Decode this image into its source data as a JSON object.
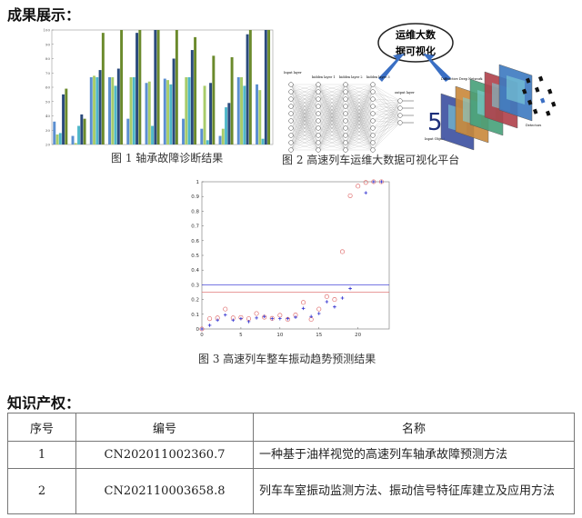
{
  "section1_title": "成果展示：",
  "fig1": {
    "caption": "图 1 轴承故障诊断结果",
    "chart_data": {
      "type": "bar",
      "ylim": [
        20,
        100
      ],
      "yticks": [
        20,
        30,
        40,
        50,
        60,
        70,
        80,
        90,
        100
      ],
      "colors": [
        "#5b8fd0",
        "#a8cc6a",
        "#4fb7c9",
        "#2a4a7c",
        "#6b8a2c"
      ],
      "groups": [
        [
          36,
          27,
          28,
          55,
          59
        ],
        [
          26,
          21,
          33,
          41,
          38
        ],
        [
          67,
          68,
          67,
          72,
          98
        ],
        [
          67,
          67,
          61,
          73,
          100
        ],
        [
          38,
          67,
          67,
          98,
          100
        ],
        [
          63,
          64,
          33,
          100,
          100
        ],
        [
          66,
          65,
          62,
          80,
          100
        ],
        [
          38,
          67,
          67,
          86,
          95
        ],
        [
          31,
          61,
          23,
          63,
          82
        ],
        [
          26,
          31,
          46,
          49,
          81
        ],
        [
          67,
          67,
          61,
          97,
          100
        ],
        [
          62,
          58,
          24,
          100,
          100
        ]
      ]
    }
  },
  "fig2": {
    "caption": "图 2 高速列车运维大数据可视化平台",
    "bubble_line1": "运维大数",
    "bubble_line2": "据可视化",
    "labels": {
      "input_layer": "Input layer",
      "hidden1": "hidden layer 1",
      "hidden2": "hidden layer 2",
      "hidden3": "hidden layer 3",
      "output_layer": "output layer",
      "d2nn": "Diffractive Deep Network",
      "input_object": "Input Object",
      "detectors": "Detectors",
      "digit": "5"
    }
  },
  "fig3": {
    "caption": "图 3 高速列车整车振动趋势预测结果",
    "chart_data": {
      "type": "scatter",
      "xlim": [
        0,
        24
      ],
      "ylim": [
        0,
        1
      ],
      "xticks": [
        0,
        5,
        10,
        15,
        20
      ],
      "yticks": [
        0,
        0.1,
        0.2,
        0.3,
        0.4,
        0.5,
        0.6,
        0.7,
        0.8,
        0.9,
        1
      ],
      "hlines": [
        {
          "y": 0.3,
          "color": "#4a4ad8"
        },
        {
          "y": 0.25,
          "color": "#e07a7a"
        }
      ],
      "series": [
        {
          "marker": "circle",
          "color": "#e07070",
          "x": [
            0,
            1,
            2,
            3,
            4,
            5,
            6,
            7,
            8,
            9,
            10,
            11,
            12,
            13,
            14,
            15,
            16,
            17,
            18,
            19,
            20,
            21,
            22,
            23
          ],
          "y": [
            0,
            0.07,
            0.075,
            0.135,
            0.075,
            0.078,
            0.07,
            0.105,
            0.08,
            0.072,
            0.093,
            0.065,
            0.095,
            0.18,
            0.065,
            0.135,
            0.22,
            0.2,
            0.525,
            0.905,
            0.97,
            0.995,
            1,
            1
          ]
        },
        {
          "marker": "plus",
          "color": "#3030d0",
          "x": [
            0,
            1,
            2,
            3,
            4,
            5,
            6,
            7,
            8,
            9,
            10,
            11,
            12,
            13,
            14,
            15,
            16,
            17,
            18,
            19,
            21,
            22,
            23
          ],
          "y": [
            0,
            0.025,
            0.06,
            0.095,
            0.06,
            0.07,
            0.05,
            0.075,
            0.085,
            0.07,
            0.07,
            0.07,
            0.08,
            0.14,
            0.085,
            0.105,
            0.185,
            0.15,
            0.21,
            0.275,
            0.925,
            1,
            1
          ]
        }
      ]
    }
  },
  "section2_title": "知识产权：",
  "ip_table": {
    "headers": [
      "序号",
      "编号",
      "名称"
    ],
    "rows": [
      [
        "1",
        "CN202011002360.7",
        "一种基于油样视觉的高速列车轴承故障预测方法"
      ],
      [
        "2",
        "CN202110003658.8",
        "列车车室振动监测方法、振动信号特征库建立及应用方法"
      ]
    ]
  }
}
